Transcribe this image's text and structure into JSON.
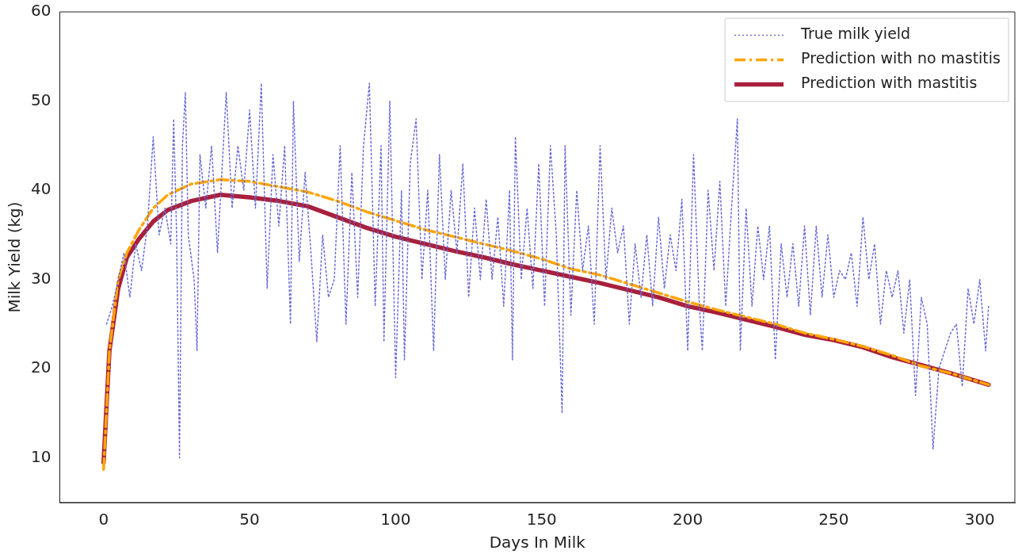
{
  "chart_data": {
    "type": "line",
    "xlabel": "Days In Milk",
    "ylabel": "Milk Yield (kg)",
    "xlim": [
      -15,
      312
    ],
    "xticks": [
      0,
      50,
      100,
      150,
      200,
      250,
      300
    ],
    "ylim": [
      5,
      60
    ],
    "yticks": [
      10,
      20,
      30,
      40,
      50,
      60
    ],
    "grid": false,
    "legend": "top right",
    "marker": "none",
    "series": [
      {
        "name": "True milk yield",
        "color": "#6b6bd6",
        "line_style": "dotted",
        "x": [
          1,
          3,
          5,
          7,
          9,
          11,
          13,
          15,
          17,
          19,
          21,
          23,
          24,
          25,
          26,
          27,
          28,
          29,
          31,
          32,
          33,
          35,
          37,
          39,
          42,
          44,
          46,
          48,
          50,
          52,
          54,
          56,
          58,
          60,
          62,
          64,
          65,
          67,
          69,
          71,
          73,
          75,
          77,
          79,
          81,
          83,
          85,
          87,
          89,
          91,
          93,
          95,
          96,
          98,
          100,
          102,
          103,
          105,
          107,
          109,
          111,
          113,
          115,
          117,
          119,
          121,
          123,
          125,
          127,
          129,
          131,
          133,
          135,
          137,
          139,
          140,
          141,
          143,
          145,
          147,
          149,
          151,
          153,
          155,
          157,
          158,
          160,
          162,
          164,
          166,
          168,
          170,
          172,
          174,
          176,
          178,
          180,
          182,
          184,
          186,
          188,
          190,
          192,
          194,
          196,
          198,
          200,
          202,
          204,
          205,
          207,
          209,
          211,
          213,
          215,
          217,
          218,
          220,
          222,
          224,
          226,
          228,
          230,
          232,
          234,
          236,
          238,
          240,
          242,
          244,
          246,
          248,
          250,
          252,
          254,
          256,
          258,
          260,
          262,
          264,
          266,
          268,
          270,
          272,
          274,
          276,
          278,
          280,
          282,
          284,
          286,
          288,
          290,
          292,
          294,
          296,
          298,
          300,
          302,
          303
        ],
        "values": [
          25,
          27,
          30,
          33,
          28,
          34,
          31,
          36,
          46,
          35,
          38,
          34,
          48,
          35,
          10,
          45,
          51,
          35,
          30,
          22,
          44,
          38,
          45,
          33,
          51,
          38,
          45,
          40,
          49,
          38,
          52,
          29,
          44,
          36,
          45,
          25,
          50,
          32,
          42,
          33,
          23,
          35,
          28,
          30,
          45,
          25,
          42,
          28,
          45,
          52,
          27,
          45,
          23,
          50,
          19,
          40,
          21,
          43,
          48,
          30,
          40,
          22,
          44,
          30,
          40,
          33,
          43,
          28,
          38,
          30,
          39,
          30,
          37,
          27,
          40,
          21,
          46,
          30,
          38,
          29,
          43,
          27,
          45,
          35,
          15,
          45,
          26,
          40,
          31,
          36,
          25,
          45,
          30,
          38,
          33,
          36,
          25,
          34,
          28,
          35,
          27,
          37,
          29,
          35,
          31,
          39,
          22,
          44,
          27,
          22,
          40,
          31,
          41,
          27,
          38,
          48,
          22,
          38,
          27,
          36,
          30,
          36,
          21,
          34,
          28,
          34,
          27,
          36,
          26,
          36,
          28,
          35,
          28,
          31,
          30,
          33,
          27,
          37,
          30,
          34,
          25,
          31,
          28,
          31,
          24,
          30,
          17,
          28,
          25,
          11,
          20,
          22,
          24,
          25,
          18,
          29,
          25,
          30,
          22,
          27
        ]
      },
      {
        "name": "Prediction with no mastitis",
        "color": "#ffa500",
        "line_style": "dashed",
        "x": [
          0,
          2,
          5,
          8,
          12,
          17,
          22,
          30,
          40,
          50,
          60,
          70,
          80,
          90,
          100,
          110,
          120,
          130,
          140,
          150,
          160,
          170,
          180,
          190,
          200,
          210,
          220,
          230,
          240,
          250,
          260,
          270,
          280,
          290,
          303
        ],
        "values": [
          8.7,
          22,
          30,
          33,
          35.5,
          38,
          39.5,
          40.7,
          41.2,
          41,
          40.4,
          39.8,
          38.8,
          37.6,
          36.6,
          35.6,
          34.8,
          34,
          33.2,
          32.3,
          31.2,
          30.5,
          29.5,
          28.5,
          27.5,
          26.6,
          25.8,
          25,
          24,
          23.3,
          22.5,
          21.5,
          20.3,
          19.5,
          18.2
        ]
      },
      {
        "name": "Prediction with mastitis",
        "color": "#a8203c",
        "line_style": "solid",
        "x": [
          0,
          2,
          5,
          8,
          12,
          17,
          22,
          30,
          40,
          50,
          60,
          70,
          80,
          90,
          100,
          110,
          120,
          130,
          140,
          150,
          160,
          170,
          180,
          190,
          200,
          210,
          220,
          230,
          240,
          250,
          260,
          270,
          280,
          290,
          303
        ],
        "values": [
          9.5,
          22,
          29,
          32.5,
          34.5,
          36.5,
          37.8,
          38.8,
          39.5,
          39.2,
          38.8,
          38.2,
          37,
          35.8,
          34.8,
          34,
          33.2,
          32.5,
          31.7,
          31,
          30.3,
          29.6,
          28.8,
          28,
          27,
          26.3,
          25.5,
          24.7,
          23.8,
          23.2,
          22.4,
          21.3,
          20.4,
          19.5,
          18.2
        ]
      }
    ]
  }
}
